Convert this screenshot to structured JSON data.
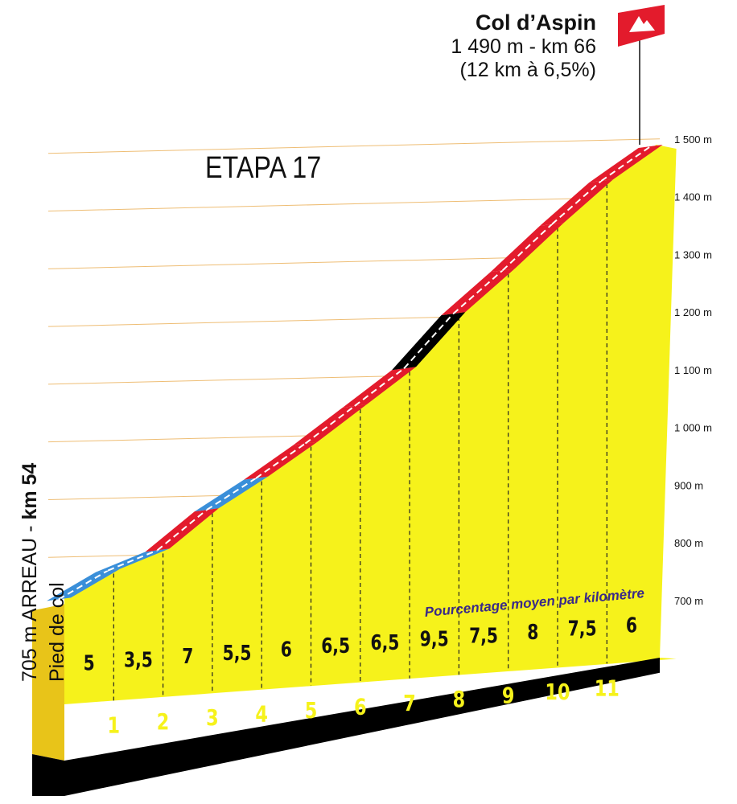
{
  "summit": {
    "name": "Col d’Aspin",
    "line1": "1 490 m - km 66",
    "line2": "(12 km à 6,5%)"
  },
  "stage_label": "ETAPA 17",
  "start": {
    "label_plain": "705 m ARREAU - ",
    "label_bold": "km 54",
    "sub": "Pied de col"
  },
  "note": "Pourcentage moyen par kilomètre",
  "colors": {
    "fill": "#f6f21b",
    "red": "#e31b2c",
    "blue": "#3a8fd9",
    "black": "#000000",
    "grid": "#e7a23a"
  },
  "chart_data": {
    "type": "area",
    "title": "Col d’Aspin",
    "xlabel": "",
    "ylabel": "",
    "ylim": [
      600,
      1500
    ],
    "y_ticks": [
      700,
      800,
      900,
      1000,
      1100,
      1200,
      1300,
      1400,
      1500
    ],
    "y_tick_labels": [
      "700 m",
      "800 m",
      "900 m",
      "1 000 m",
      "1 100 m",
      "1 200 m",
      "1 300 m",
      "1 400 m",
      "1 500 m"
    ],
    "x": [
      0,
      1,
      2,
      3,
      4,
      5,
      6,
      7,
      8,
      9,
      10,
      11,
      12
    ],
    "x_tick_labels": [
      "1",
      "2",
      "3",
      "4",
      "5",
      "6",
      "7",
      "8",
      "9",
      "10",
      "11"
    ],
    "elevation_m": [
      705,
      755,
      790,
      860,
      915,
      975,
      1040,
      1105,
      1200,
      1275,
      1355,
      1430,
      1490
    ],
    "gradient_pct_labels": [
      "5",
      "3,5",
      "7",
      "5,5",
      "6",
      "6,5",
      "6,5",
      "9,5",
      "7,5",
      "8",
      "7,5",
      "6"
    ],
    "gradient_category": [
      "blue",
      "blue",
      "red",
      "blue",
      "red",
      "red",
      "red",
      "black",
      "red",
      "red",
      "red",
      "red"
    ]
  }
}
